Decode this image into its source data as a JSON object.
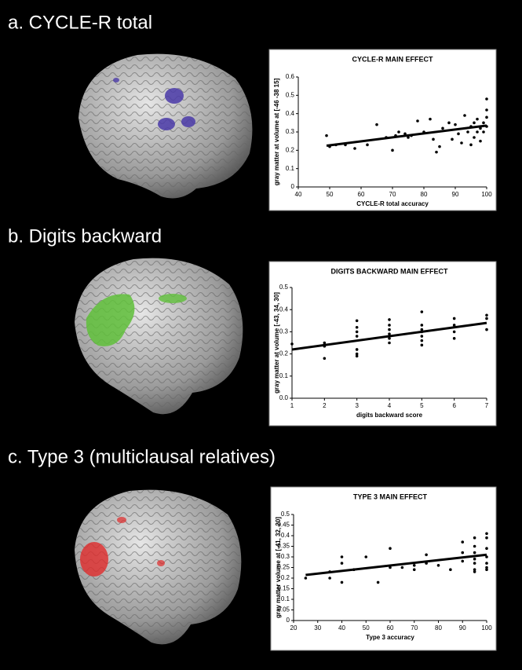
{
  "chart_data": [
    {
      "type": "scatter",
      "panel_title": "a.  CYCLE-R total",
      "title": "CYCLE-R MAIN EFFECT",
      "x_label": "CYCLE-R total accuracy",
      "y_label": "gray matter at volume at [-46 -38 15]",
      "x": [
        49,
        50,
        52,
        55,
        58,
        62,
        65,
        68,
        70,
        71,
        72,
        74,
        75,
        76,
        78,
        80,
        82,
        83,
        84,
        85,
        86,
        88,
        89,
        90,
        91,
        92,
        93,
        94,
        95,
        95,
        96,
        96,
        97,
        97,
        98,
        98,
        99,
        99,
        100,
        100,
        100,
        100
      ],
      "values": [
        0.28,
        0.22,
        0.23,
        0.23,
        0.21,
        0.23,
        0.34,
        0.27,
        0.2,
        0.28,
        0.3,
        0.29,
        0.27,
        0.28,
        0.36,
        0.3,
        0.37,
        0.26,
        0.19,
        0.22,
        0.32,
        0.35,
        0.26,
        0.34,
        0.29,
        0.24,
        0.39,
        0.3,
        0.23,
        0.33,
        0.35,
        0.27,
        0.3,
        0.37,
        0.25,
        0.32,
        0.35,
        0.3,
        0.48,
        0.42,
        0.38,
        0.33
      ],
      "color": "#000000",
      "trend": {
        "x": [
          49,
          100
        ],
        "values": [
          0.225,
          0.335
        ]
      },
      "xlim": [
        40,
        100
      ],
      "xticks": [
        40,
        50,
        60,
        70,
        80,
        90,
        100
      ],
      "ylim": [
        0,
        0.6
      ],
      "yticks": [
        0,
        0.1,
        0.2,
        0.3,
        0.4,
        0.5,
        0.6
      ]
    },
    {
      "type": "scatter",
      "panel_title": "b.  Digits backward",
      "title": "DIGITS BACKWARD MAIN EFFECT",
      "x_label": "digits backward score",
      "y_label": "gray matter at volume [-43, 34, 30]",
      "x": [
        1,
        2,
        2,
        2,
        3,
        3,
        3,
        3,
        3,
        3,
        3,
        4,
        4,
        4,
        4,
        4,
        4,
        5,
        5,
        5,
        5,
        5,
        5,
        5,
        6,
        6,
        6,
        6,
        7,
        7,
        7
      ],
      "values": [
        0.245,
        0.25,
        0.235,
        0.18,
        0.35,
        0.32,
        0.3,
        0.28,
        0.22,
        0.2,
        0.19,
        0.355,
        0.33,
        0.31,
        0.29,
        0.27,
        0.25,
        0.39,
        0.33,
        0.31,
        0.3,
        0.28,
        0.26,
        0.24,
        0.36,
        0.33,
        0.3,
        0.27,
        0.375,
        0.36,
        0.31
      ],
      "color": "#000000",
      "trend": {
        "x": [
          1,
          7
        ],
        "values": [
          0.22,
          0.34
        ]
      },
      "xlim": [
        1,
        7
      ],
      "xticks": [
        1,
        2,
        3,
        4,
        5,
        6,
        7
      ],
      "ylim": [
        0,
        0.5
      ],
      "yticks": [
        {
          "value": 0,
          "label": "0.0"
        },
        0.1,
        0.2,
        0.3,
        0.4,
        0.5
      ]
    },
    {
      "type": "scatter",
      "panel_title": "c. Type 3 (multiclausal relatives)",
      "title": "TYPE 3 MAIN EFFECT",
      "x_label": "Type 3 accuracy",
      "y_label": "gray matter volume at [-41, 32, 20]",
      "x": [
        25,
        35,
        35,
        40,
        40,
        40,
        45,
        50,
        55,
        60,
        60,
        65,
        70,
        70,
        75,
        75,
        80,
        85,
        90,
        90,
        90,
        95,
        95,
        95,
        95,
        95,
        95,
        95,
        100,
        100,
        100,
        100,
        100,
        100,
        100
      ],
      "values": [
        0.2,
        0.2,
        0.23,
        0.3,
        0.27,
        0.18,
        0.24,
        0.3,
        0.18,
        0.34,
        0.25,
        0.25,
        0.26,
        0.24,
        0.27,
        0.31,
        0.26,
        0.24,
        0.37,
        0.32,
        0.28,
        0.39,
        0.35,
        0.32,
        0.29,
        0.27,
        0.24,
        0.23,
        0.41,
        0.39,
        0.34,
        0.3,
        0.27,
        0.25,
        0.24
      ],
      "color": "#000000",
      "trend": {
        "x": [
          25,
          100
        ],
        "values": [
          0.215,
          0.31
        ]
      },
      "xlim": [
        20,
        100
      ],
      "xticks": [
        20,
        30,
        40,
        50,
        60,
        70,
        80,
        90,
        100
      ],
      "ylim": [
        0,
        0.5
      ],
      "yticks": [
        0,
        0.05,
        0.1,
        0.15,
        0.2,
        0.25,
        0.3,
        0.35,
        0.4,
        0.45,
        0.5
      ]
    }
  ]
}
